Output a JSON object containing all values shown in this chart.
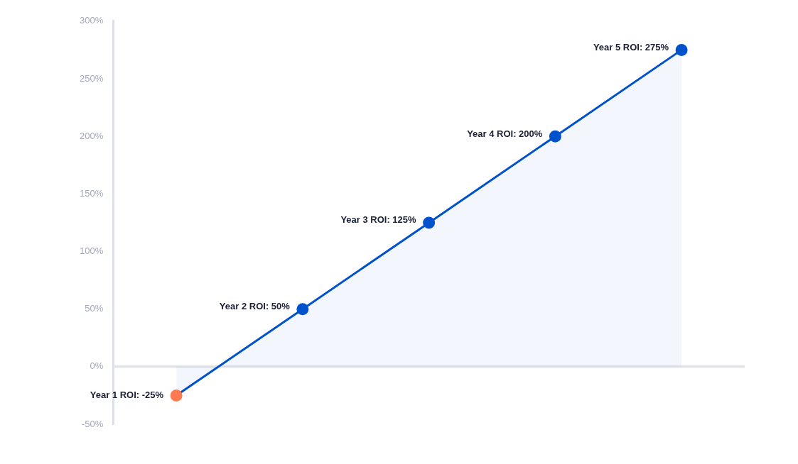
{
  "chart_data": {
    "type": "area",
    "categories": [
      null,
      null,
      null,
      null,
      null
    ],
    "series": [
      {
        "color": "#0052cc",
        "colors": [
          "#ff7a50",
          "#0052cc",
          "#0052cc",
          "#0052cc",
          "#0052cc"
        ],
        "values": [
          -25,
          50,
          125,
          200,
          275
        ],
        "value_labels": [
          "Year 1 ROI: -25%",
          "Year 2 ROI: 50%",
          "Year 3 ROI: 125%",
          "Year 4 ROI: 200%",
          "Year 5 ROI: 275%"
        ]
      }
    ],
    "ylim": [
      -50,
      300
    ],
    "yticks": [
      {
        "value": -50,
        "label": "-50%"
      },
      {
        "value": 0,
        "label": "0%"
      },
      {
        "value": 50,
        "label": "50%"
      },
      {
        "value": 100,
        "label": "100%"
      },
      {
        "value": 150,
        "label": "150%"
      },
      {
        "value": 200,
        "label": "200%"
      },
      {
        "value": 250,
        "label": "250%"
      },
      {
        "value": 300,
        "label": "300%"
      }
    ],
    "ref_lines": [
      {
        "axis": "y",
        "value": 0,
        "color": "#dde0e6"
      }
    ],
    "tick_labels": "y",
    "grid": false,
    "legend": false,
    "marker": "circle"
  }
}
